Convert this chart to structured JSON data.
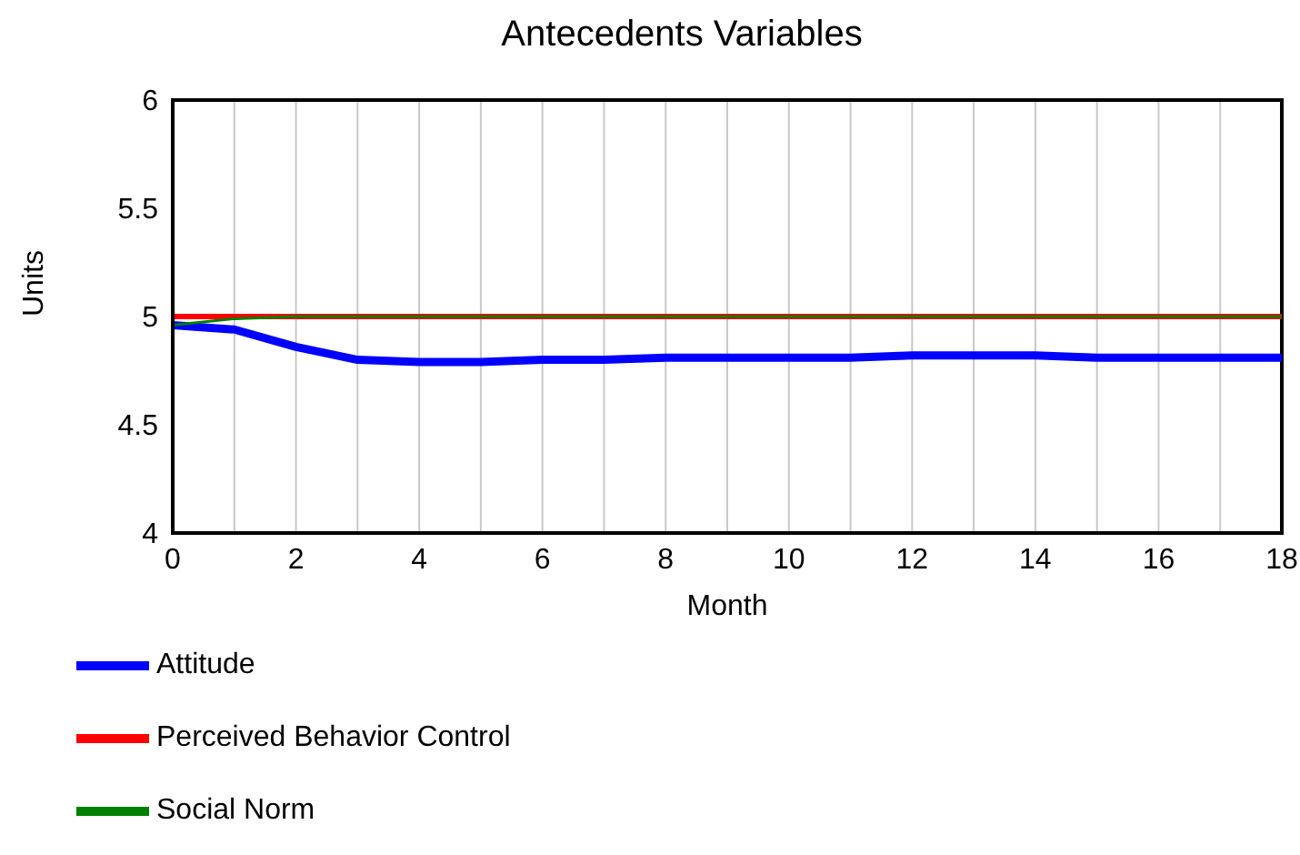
{
  "chart_data": {
    "type": "line",
    "title": "Antecedents Variables",
    "xlabel": "Month",
    "ylabel": "Units",
    "x": [
      0,
      1,
      2,
      3,
      4,
      5,
      6,
      7,
      8,
      9,
      10,
      11,
      12,
      13,
      14,
      15,
      16,
      17,
      18
    ],
    "series": [
      {
        "name": "Attitude",
        "color": "#0000ff",
        "values": [
          4.96,
          4.94,
          4.86,
          4.8,
          4.79,
          4.79,
          4.8,
          4.8,
          4.81,
          4.81,
          4.81,
          4.81,
          4.82,
          4.82,
          4.82,
          4.81,
          4.81,
          4.81,
          4.81
        ]
      },
      {
        "name": "Perceived Behavior Control",
        "color": "#ff0000",
        "values": [
          5,
          5,
          5,
          5,
          5,
          5,
          5,
          5,
          5,
          5,
          5,
          5,
          5,
          5,
          5,
          5,
          5,
          5,
          5
        ]
      },
      {
        "name": "Social Norm",
        "color": "#008000",
        "values": [
          4.96,
          4.99,
          5,
          5,
          5,
          5,
          5,
          5,
          5,
          5,
          5,
          5,
          5,
          5,
          5,
          5,
          5,
          5,
          5
        ]
      }
    ],
    "xlim": [
      0,
      18
    ],
    "xticks": [
      0,
      {
        "value": 1,
        "label": null
      },
      2,
      {
        "value": 3,
        "label": null
      },
      4,
      {
        "value": 5,
        "label": null
      },
      6,
      {
        "value": 7,
        "label": null
      },
      8,
      {
        "value": 9,
        "label": null
      },
      10,
      {
        "value": 11,
        "label": null
      },
      12,
      {
        "value": 13,
        "label": null
      },
      14,
      {
        "value": 15,
        "label": null
      },
      16,
      {
        "value": 17,
        "label": null
      },
      18
    ],
    "ylim": [
      4,
      6
    ],
    "yticks": [
      4,
      4.5,
      5,
      5.5,
      6
    ],
    "grid": "x",
    "legend": "bottom",
    "line_style": "solid"
  }
}
